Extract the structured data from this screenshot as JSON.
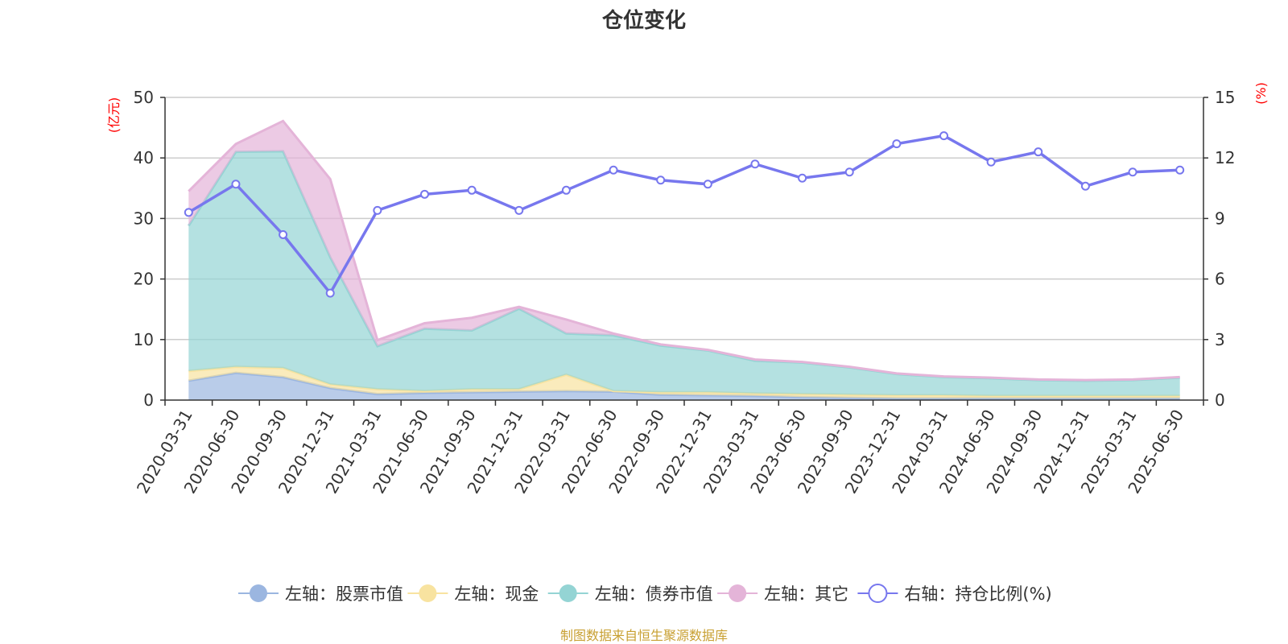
{
  "chart_data": {
    "type": "area",
    "title": "仓位变化",
    "left_axis_unit": "(亿元)",
    "right_axis_unit": "(%)",
    "ylim_left": [
      0,
      50
    ],
    "yticks_left": [
      "0",
      "10",
      "20",
      "30",
      "40",
      "50"
    ],
    "ylim_right": [
      0,
      15
    ],
    "yticks_right": [
      "0",
      "3",
      "6",
      "9",
      "12",
      "15"
    ],
    "grid": true,
    "legend_position": "bottom",
    "categories": [
      "2020-03-31",
      "2020-06-30",
      "2020-09-30",
      "2020-12-31",
      "2021-03-31",
      "2021-06-30",
      "2021-09-30",
      "2021-12-31",
      "2022-03-31",
      "2022-06-30",
      "2022-09-30",
      "2022-12-31",
      "2023-03-31",
      "2023-06-30",
      "2023-09-30",
      "2023-12-31",
      "2024-03-31",
      "2024-06-30",
      "2024-09-30",
      "2024-12-31",
      "2025-03-31",
      "2025-06-30"
    ],
    "stacked_series": [
      {
        "name": "左轴：股票市值",
        "axis": "left",
        "color": "#9bb6e0",
        "values": [
          3.2,
          4.5,
          3.8,
          2.0,
          1.0,
          1.2,
          1.3,
          1.4,
          1.5,
          1.4,
          0.9,
          0.8,
          0.7,
          0.5,
          0.4,
          0.3,
          0.3,
          0.3,
          0.3,
          0.3,
          0.3,
          0.3
        ]
      },
      {
        "name": "左轴：现金",
        "axis": "left",
        "color": "#f8e3a0",
        "values": [
          1.6,
          1.0,
          1.5,
          0.6,
          0.8,
          0.3,
          0.5,
          0.4,
          2.7,
          0.1,
          0.4,
          0.5,
          0.4,
          0.5,
          0.5,
          0.5,
          0.5,
          0.4,
          0.4,
          0.4,
          0.4,
          0.4
        ]
      },
      {
        "name": "左轴：债券市值",
        "axis": "left",
        "color": "#94d4d4",
        "values": [
          24.0,
          35.5,
          35.8,
          21.0,
          7.1,
          10.3,
          9.7,
          13.3,
          6.8,
          9.2,
          7.7,
          6.9,
          5.4,
          5.2,
          4.5,
          3.5,
          3.0,
          2.9,
          2.6,
          2.5,
          2.6,
          3.0
        ]
      },
      {
        "name": "左轴：其它",
        "axis": "left",
        "color": "#e4b4d8",
        "values": [
          5.7,
          1.3,
          5.0,
          12.9,
          1.0,
          0.9,
          2.1,
          0.3,
          2.3,
          0.3,
          0.2,
          0.1,
          0.2,
          0.1,
          0.1,
          0.1,
          0.1,
          0.1,
          0.1,
          0.1,
          0.1,
          0.1
        ]
      }
    ],
    "line_series": {
      "name": "右轴：持仓比例(%)",
      "axis": "right",
      "color": "#7777ee",
      "values": [
        9.3,
        10.7,
        8.2,
        5.3,
        9.4,
        10.2,
        10.4,
        9.4,
        10.4,
        11.4,
        10.9,
        10.7,
        11.7,
        11.0,
        11.3,
        12.7,
        13.1,
        11.8,
        12.3,
        10.6,
        11.3,
        11.4
      ]
    },
    "source": "制图数据来自恒生聚源数据库"
  }
}
